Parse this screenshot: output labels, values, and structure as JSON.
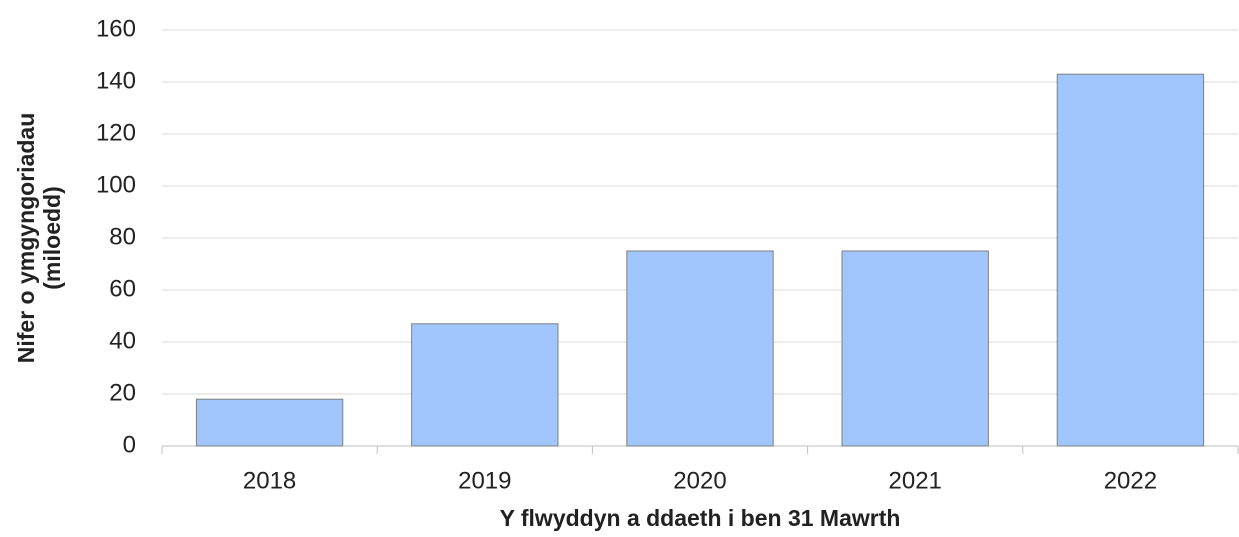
{
  "chart_data": {
    "type": "bar",
    "categories": [
      "2018",
      "2019",
      "2020",
      "2021",
      "2022"
    ],
    "values": [
      18,
      47,
      75,
      75,
      143
    ],
    "color": "#a1c6fd",
    "xlabel": "Y flwyddyn a ddaeth i ben 31 Mawrth",
    "ylabel": [
      "Nifer o ymgyngoriadau",
      "(miloedd)"
    ],
    "ylim": [
      0,
      160
    ],
    "yticks": [
      0,
      20,
      40,
      60,
      80,
      100,
      120,
      140,
      160
    ],
    "grid": true
  }
}
